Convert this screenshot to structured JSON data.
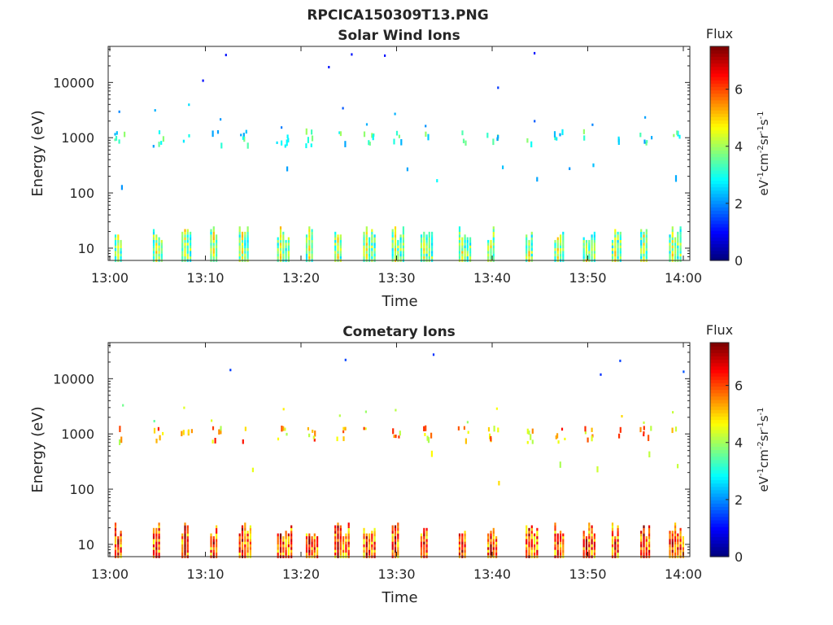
{
  "figure": {
    "title": "RPCICA150309T13.PNG"
  },
  "chart_data": [
    {
      "type": "heatmap",
      "title": "Solar Wind Ions",
      "xlabel": "Time",
      "ylabel": "Energy (eV)",
      "x_ticks": [
        "13:00",
        "13:10",
        "13:20",
        "13:30",
        "13:40",
        "13:50",
        "14:00"
      ],
      "x_range": [
        "13:00",
        "14:00"
      ],
      "y_scale": "log",
      "y_ticks": [
        "10",
        "100",
        "1000",
        "10000"
      ],
      "y_range": [
        6,
        45000
      ],
      "colorbar": {
        "title": "Flux",
        "unit_parts": [
          "eV",
          "-1",
          "cm",
          "-2",
          "sr",
          "-1",
          "s",
          "-1"
        ],
        "range": [
          0,
          7.5
        ],
        "ticks": [
          "0",
          "2",
          "4",
          "6"
        ],
        "colormap": "jet"
      },
      "structure": {
        "low_energy_band_ev": [
          6,
          25
        ],
        "solar_wind_band_ev": [
          700,
          1300
        ],
        "alpha_band_ev": [
          1500,
          4000
        ],
        "bursts": [
          "13:01",
          "13:05",
          "13:08",
          "13:11",
          "13:14",
          "13:18",
          "13:21",
          "13:24",
          "13:27",
          "13:30",
          "13:33",
          "13:37",
          "13:40",
          "13:44",
          "13:47",
          "13:50",
          "13:53",
          "13:56",
          "13:59"
        ],
        "typical_flux": [
          2.5,
          4.5
        ]
      }
    },
    {
      "type": "heatmap",
      "title": "Cometary Ions",
      "xlabel": "Time",
      "ylabel": "Energy (eV)",
      "x_ticks": [
        "13:00",
        "13:10",
        "13:20",
        "13:30",
        "13:40",
        "13:50",
        "14:00"
      ],
      "x_range": [
        "13:00",
        "14:00"
      ],
      "y_scale": "log",
      "y_ticks": [
        "10",
        "100",
        "1000",
        "10000"
      ],
      "y_range": [
        6,
        45000
      ],
      "colorbar": {
        "title": "Flux",
        "unit_parts": [
          "eV",
          "-1",
          "cm",
          "-2",
          "sr",
          "-1",
          "s",
          "-1"
        ],
        "range": [
          0,
          7.5
        ],
        "ticks": [
          "0",
          "2",
          "4",
          "6"
        ],
        "colormap": "jet"
      },
      "structure": {
        "low_energy_band_ev": [
          6,
          25
        ],
        "solar_wind_band_ev": [
          700,
          1300
        ],
        "alpha_band_ev": [
          1500,
          4000
        ],
        "bursts": [
          "13:01",
          "13:05",
          "13:08",
          "13:11",
          "13:14",
          "13:18",
          "13:21",
          "13:24",
          "13:27",
          "13:30",
          "13:33",
          "13:37",
          "13:40",
          "13:44",
          "13:47",
          "13:50",
          "13:53",
          "13:56",
          "13:59"
        ],
        "typical_flux": [
          4.5,
          7
        ]
      }
    }
  ]
}
